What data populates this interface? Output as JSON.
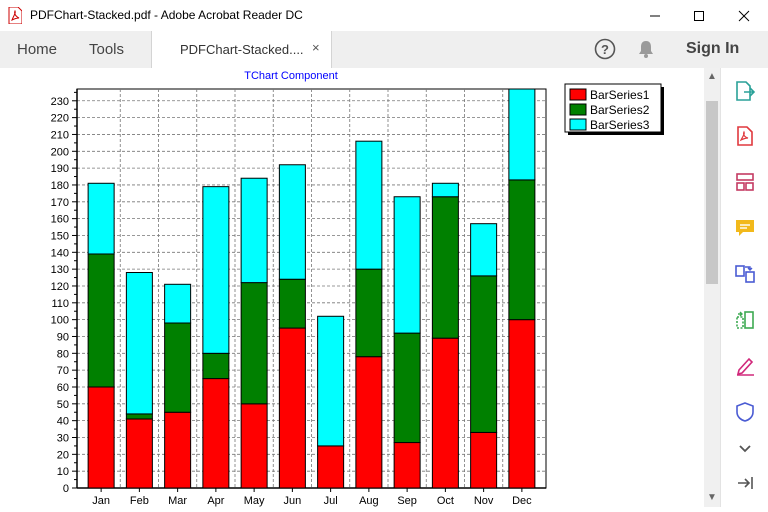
{
  "window": {
    "title": "PDFChart-Stacked.pdf - Adobe Acrobat Reader DC",
    "minimize_icon": "minimize-icon",
    "maximize_icon": "maximize-icon",
    "close_icon": "close-icon"
  },
  "tabs": {
    "home": "Home",
    "tools": "Tools",
    "document": "PDFChart-Stacked....",
    "close_glyph": "×"
  },
  "toolbar": {
    "sign_in": "Sign In"
  },
  "right_tools": [
    "export-pdf-icon",
    "create-pdf-icon",
    "organize-pages-icon",
    "comment-icon",
    "combine-files-icon",
    "compress-pdf-icon",
    "fill-sign-icon",
    "protect-icon",
    "chevron-down-icon",
    "collapse-panel-icon"
  ],
  "colors": {
    "series1": "#ff0000",
    "series2": "#008000",
    "series3": "#00ffff",
    "chart_title": "#0000ff",
    "sign_in_icon_accent": "#2f8d57"
  },
  "chart_data": {
    "type": "bar",
    "stacked": true,
    "title": "TChart Component",
    "categories": [
      "Jan",
      "Feb",
      "Mar",
      "Apr",
      "May",
      "Jun",
      "Jul",
      "Aug",
      "Sep",
      "Oct",
      "Nov",
      "Dec"
    ],
    "series": [
      {
        "name": "BarSeries1",
        "values": [
          60,
          41,
          45,
          65,
          50,
          95,
          25,
          78,
          27,
          89,
          33,
          100
        ]
      },
      {
        "name": "BarSeries2",
        "values": [
          79,
          3,
          53,
          15,
          72,
          29,
          0,
          52,
          65,
          84,
          93,
          83
        ]
      },
      {
        "name": "BarSeries3",
        "values": [
          42,
          84,
          23,
          99,
          62,
          68,
          77,
          76,
          81,
          8,
          31,
          54
        ]
      }
    ],
    "ylim": [
      0,
      237
    ],
    "yticks": [
      0,
      10,
      20,
      30,
      40,
      50,
      60,
      70,
      80,
      90,
      100,
      110,
      120,
      130,
      140,
      150,
      160,
      170,
      180,
      190,
      200,
      210,
      220,
      230
    ],
    "grid": true,
    "legend_position": "top-right"
  }
}
